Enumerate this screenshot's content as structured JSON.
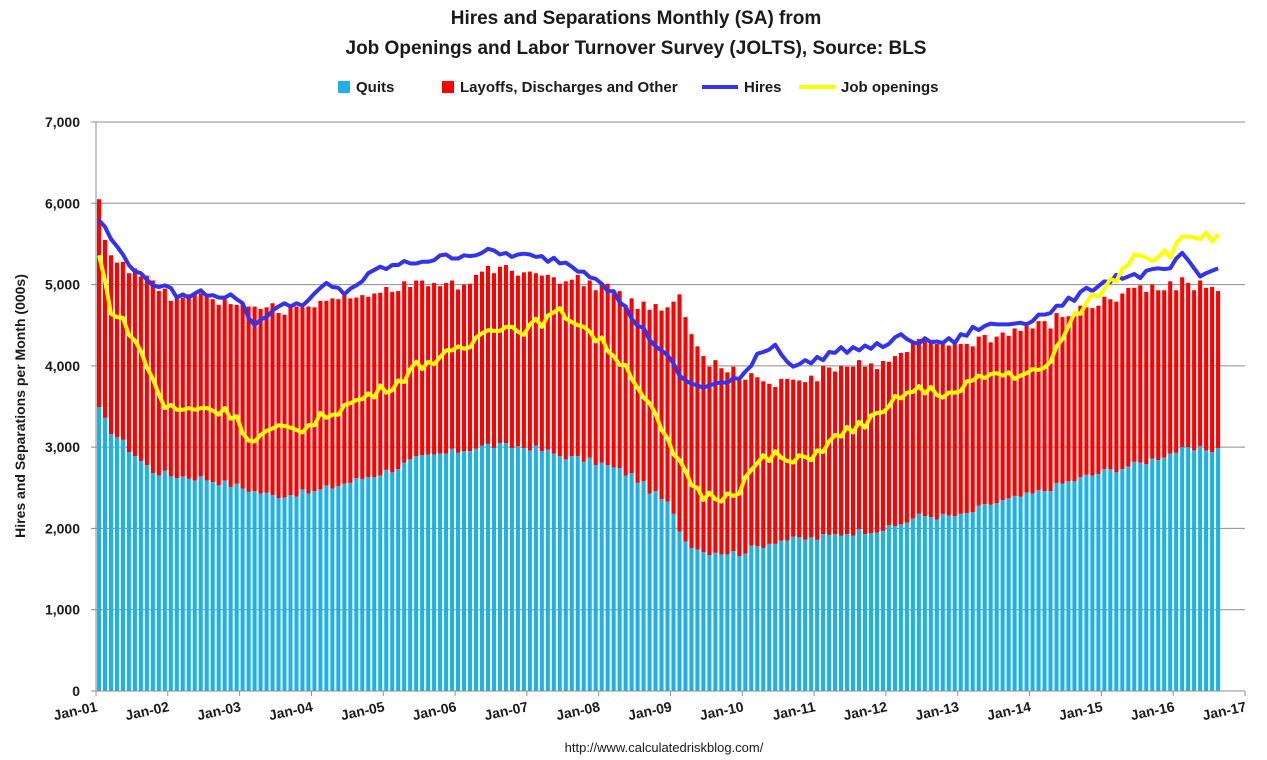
{
  "chart_data": {
    "type": "bar+line",
    "title_line1": "Hires and Separations Monthly (SA) from",
    "title_line2": "Job Openings and Labor Turnover Survey (JOLTS), Source: BLS",
    "ylabel": "Hires and Separations per Month (000s)",
    "xlabel": "",
    "source": "http://www.calculatedriskblog.com/",
    "ylim": [
      0,
      7000
    ],
    "y_ticks": [
      {
        "value": 0,
        "label": "0"
      },
      {
        "value": 1000,
        "label": "1,000"
      },
      {
        "value": 2000,
        "label": "2,000"
      },
      {
        "value": 3000,
        "label": "3,000"
      },
      {
        "value": 4000,
        "label": "4,000"
      },
      {
        "value": 5000,
        "label": "5,000"
      },
      {
        "value": 6000,
        "label": "6,000"
      },
      {
        "value": 7000,
        "label": "7,000"
      }
    ],
    "x_range": [
      "2001-01",
      "2017-01"
    ],
    "x_ticks": [
      "Jan-01",
      "Jan-02",
      "Jan-03",
      "Jan-04",
      "Jan-05",
      "Jan-06",
      "Jan-07",
      "Jan-08",
      "Jan-09",
      "Jan-10",
      "Jan-11",
      "Jan-12",
      "Jan-13",
      "Jan-14",
      "Jan-15",
      "Jan-16",
      "Jan-17"
    ],
    "grid": "horizontal",
    "legend_position": "top-center",
    "start_month": "2001-01",
    "series": [
      {
        "name": "Quits",
        "kind": "bar-stacked",
        "color": "#1fb1e6",
        "anchors": [
          [
            "2001-01",
            3450
          ],
          [
            "2001-03",
            3200
          ],
          [
            "2001-07",
            2900
          ],
          [
            "2001-10",
            2700
          ],
          [
            "2002-01",
            2650
          ],
          [
            "2002-06",
            2620
          ],
          [
            "2003-01",
            2500
          ],
          [
            "2003-06",
            2400
          ],
          [
            "2004-01",
            2450
          ],
          [
            "2004-06",
            2550
          ],
          [
            "2005-01",
            2700
          ],
          [
            "2005-06",
            2850
          ],
          [
            "2006-01",
            2950
          ],
          [
            "2006-06",
            3020
          ],
          [
            "2007-01",
            3000
          ],
          [
            "2007-06",
            2900
          ],
          [
            "2008-01",
            2800
          ],
          [
            "2008-06",
            2650
          ],
          [
            "2008-12",
            2300
          ],
          [
            "2009-03",
            1850
          ],
          [
            "2009-06",
            1720
          ],
          [
            "2009-12",
            1700
          ],
          [
            "2010-06",
            1850
          ],
          [
            "2011-01",
            1880
          ],
          [
            "2011-06",
            1950
          ],
          [
            "2012-01",
            2000
          ],
          [
            "2012-06",
            2150
          ],
          [
            "2013-01",
            2150
          ],
          [
            "2013-06",
            2300
          ],
          [
            "2014-01",
            2420
          ],
          [
            "2014-06",
            2550
          ],
          [
            "2015-01",
            2700
          ],
          [
            "2015-06",
            2780
          ],
          [
            "2016-01",
            2950
          ],
          [
            "2016-08",
            2980
          ]
        ],
        "values": []
      },
      {
        "name": "Layoffs, Discharges and Other",
        "kind": "bar-stacked",
        "color": "#ff0000",
        "anchors": [
          [
            "2001-01",
            2600
          ],
          [
            "2001-02",
            2150
          ],
          [
            "2001-06",
            2250
          ],
          [
            "2001-10",
            2350
          ],
          [
            "2002-01",
            2200
          ],
          [
            "2002-06",
            2280
          ],
          [
            "2003-01",
            2250
          ],
          [
            "2003-06",
            2300
          ],
          [
            "2004-01",
            2300
          ],
          [
            "2004-06",
            2280
          ],
          [
            "2005-01",
            2250
          ],
          [
            "2005-06",
            2150
          ],
          [
            "2006-01",
            2050
          ],
          [
            "2006-06",
            2150
          ],
          [
            "2007-01",
            2150
          ],
          [
            "2007-06",
            2150
          ],
          [
            "2008-01",
            2200
          ],
          [
            "2008-06",
            2150
          ],
          [
            "2008-12",
            2350
          ],
          [
            "2009-02",
            2900
          ],
          [
            "2009-04",
            2600
          ],
          [
            "2009-07",
            2350
          ],
          [
            "2009-12",
            2200
          ],
          [
            "2010-06",
            1950
          ],
          [
            "2011-01",
            2000
          ],
          [
            "2011-06",
            2100
          ],
          [
            "2012-01",
            2050
          ],
          [
            "2012-06",
            2150
          ],
          [
            "2013-01",
            2100
          ],
          [
            "2013-06",
            2050
          ],
          [
            "2014-01",
            2050
          ],
          [
            "2014-06",
            2050
          ],
          [
            "2015-01",
            2100
          ],
          [
            "2015-06",
            2150
          ],
          [
            "2016-01",
            2050
          ],
          [
            "2016-08",
            1980
          ]
        ],
        "values": []
      },
      {
        "name": "Hires",
        "kind": "line",
        "color": "#3333ee",
        "anchors": [
          [
            "2001-01",
            5800
          ],
          [
            "2001-04",
            5450
          ],
          [
            "2001-08",
            5100
          ],
          [
            "2001-12",
            4950
          ],
          [
            "2002-03",
            4850
          ],
          [
            "2002-06",
            4900
          ],
          [
            "2002-12",
            4850
          ],
          [
            "2003-03",
            4500
          ],
          [
            "2003-06",
            4700
          ],
          [
            "2003-12",
            4800
          ],
          [
            "2004-03",
            5000
          ],
          [
            "2004-06",
            4900
          ],
          [
            "2004-12",
            5200
          ],
          [
            "2005-06",
            5280
          ],
          [
            "2005-12",
            5350
          ],
          [
            "2006-06",
            5400
          ],
          [
            "2006-12",
            5350
          ],
          [
            "2007-06",
            5300
          ],
          [
            "2007-12",
            5100
          ],
          [
            "2008-03",
            4900
          ],
          [
            "2008-06",
            4600
          ],
          [
            "2008-09",
            4350
          ],
          [
            "2008-12",
            4100
          ],
          [
            "2009-03",
            3800
          ],
          [
            "2009-06",
            3750
          ],
          [
            "2009-09",
            3780
          ],
          [
            "2009-12",
            3820
          ],
          [
            "2010-03",
            4150
          ],
          [
            "2010-06",
            4250
          ],
          [
            "2010-09",
            4000
          ],
          [
            "2010-12",
            4050
          ],
          [
            "2011-03",
            4150
          ],
          [
            "2011-06",
            4200
          ],
          [
            "2011-12",
            4250
          ],
          [
            "2012-03",
            4350
          ],
          [
            "2012-06",
            4300
          ],
          [
            "2012-12",
            4300
          ],
          [
            "2013-03",
            4450
          ],
          [
            "2013-06",
            4500
          ],
          [
            "2013-12",
            4550
          ],
          [
            "2014-03",
            4650
          ],
          [
            "2014-06",
            4750
          ],
          [
            "2014-12",
            5000
          ],
          [
            "2015-03",
            5100
          ],
          [
            "2015-06",
            5100
          ],
          [
            "2015-12",
            5200
          ],
          [
            "2016-02",
            5350
          ],
          [
            "2016-05",
            5100
          ],
          [
            "2016-08",
            5200
          ]
        ],
        "values": []
      },
      {
        "name": "Job openings",
        "kind": "line",
        "color": "#ffff00",
        "anchors": [
          [
            "2001-01",
            5350
          ],
          [
            "2001-03",
            4700
          ],
          [
            "2001-06",
            4450
          ],
          [
            "2001-09",
            4000
          ],
          [
            "2001-12",
            3500
          ],
          [
            "2002-03",
            3450
          ],
          [
            "2002-06",
            3500
          ],
          [
            "2002-12",
            3400
          ],
          [
            "2003-02",
            3050
          ],
          [
            "2003-06",
            3200
          ],
          [
            "2003-12",
            3250
          ],
          [
            "2004-03",
            3400
          ],
          [
            "2004-06",
            3500
          ],
          [
            "2004-12",
            3700
          ],
          [
            "2005-03",
            3800
          ],
          [
            "2005-06",
            4000
          ],
          [
            "2005-12",
            4150
          ],
          [
            "2006-03",
            4250
          ],
          [
            "2006-06",
            4500
          ],
          [
            "2006-12",
            4450
          ],
          [
            "2007-03",
            4550
          ],
          [
            "2007-06",
            4650
          ],
          [
            "2007-09",
            4550
          ],
          [
            "2007-12",
            4350
          ],
          [
            "2008-03",
            4150
          ],
          [
            "2008-06",
            3900
          ],
          [
            "2008-09",
            3500
          ],
          [
            "2008-12",
            3050
          ],
          [
            "2009-03",
            2650
          ],
          [
            "2009-06",
            2400
          ],
          [
            "2009-09",
            2400
          ],
          [
            "2009-12",
            2500
          ],
          [
            "2010-03",
            2800
          ],
          [
            "2010-06",
            2900
          ],
          [
            "2010-09",
            2800
          ],
          [
            "2010-12",
            2900
          ],
          [
            "2011-03",
            3050
          ],
          [
            "2011-06",
            3200
          ],
          [
            "2011-12",
            3400
          ],
          [
            "2012-03",
            3650
          ],
          [
            "2012-06",
            3700
          ],
          [
            "2012-12",
            3650
          ],
          [
            "2013-03",
            3800
          ],
          [
            "2013-06",
            3900
          ],
          [
            "2013-12",
            3900
          ],
          [
            "2014-03",
            3950
          ],
          [
            "2014-06",
            4350
          ],
          [
            "2014-09",
            4700
          ],
          [
            "2014-12",
            4900
          ],
          [
            "2015-03",
            5100
          ],
          [
            "2015-06",
            5400
          ],
          [
            "2015-09",
            5350
          ],
          [
            "2015-12",
            5400
          ],
          [
            "2016-03",
            5600
          ],
          [
            "2016-06",
            5600
          ],
          [
            "2016-08",
            5550
          ]
        ],
        "values": []
      }
    ]
  }
}
